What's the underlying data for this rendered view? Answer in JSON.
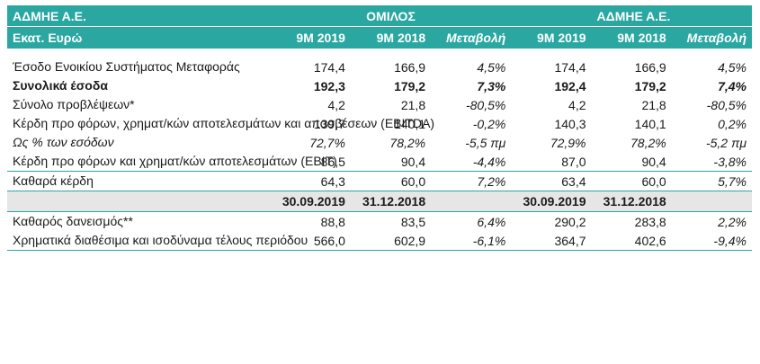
{
  "header": {
    "company": "ΑΔΜΗΕ Α.Ε.",
    "group": "ΟΜΙΛΟΣ",
    "company_right": "ΑΔΜΗΕ Α.Ε.",
    "unit": "Εκατ. Ευρώ",
    "cols": [
      "9M 2019",
      "9M 2018",
      "Μεταβολή",
      "9M 2019",
      "9M 2018",
      "Μεταβολή"
    ]
  },
  "rows": [
    {
      "label": "Έσοδο Ενοικίου Συστήματος Μεταφοράς",
      "v": [
        "174,4",
        "166,9",
        "4,5%",
        "174,4",
        "166,9",
        "4,5%"
      ]
    },
    {
      "label": "Συνολικά έσοδα",
      "v": [
        "192,3",
        "179,2",
        "7,3%",
        "192,4",
        "179,2",
        "7,4%"
      ]
    },
    {
      "label": "Σύνολο προβλέψεων*",
      "v": [
        "4,2",
        "21,8",
        "-80,5%",
        "4,2",
        "21,8",
        "-80,5%"
      ]
    },
    {
      "label": "Κέρδη προ φόρων, χρηματ/κών αποτελεσμάτων και αποσβέσεων (EBITDA)",
      "v": [
        "139,7",
        "140,1",
        "-0,2%",
        "140,3",
        "140,1",
        "0,2%"
      ]
    },
    {
      "label": "Ως % των εσόδων",
      "v": [
        "72,7%",
        "78,2%",
        "-5,5 πμ",
        "72,9%",
        "78,2%",
        "-5,2 πμ"
      ]
    },
    {
      "label": "Κέρδη προ φόρων και χρηματ/κών αποτελεσμάτων (EBIT)",
      "v": [
        "86,5",
        "90,4",
        "-4,4%",
        "87,0",
        "90,4",
        "-3,8%"
      ]
    },
    {
      "label": "Καθαρά κέρδη",
      "v": [
        "64,3",
        "60,0",
        "7,2%",
        "63,4",
        "60,0",
        "5,7%"
      ]
    }
  ],
  "dates": [
    "30.09.2019",
    "31.12.2018",
    "30.09.2019",
    "31.12.2018"
  ],
  "rows2": [
    {
      "label": "Καθαρός δανεισμός**",
      "v": [
        "88,8",
        "83,5",
        "6,4%",
        "290,2",
        "283,8",
        "2,2%"
      ]
    },
    {
      "label": "Χρηματικά διαθέσιμα και ισοδύναμα τέλους περιόδου",
      "v": [
        "566,0",
        "602,9",
        "-6,1%",
        "364,7",
        "402,6",
        "-9,4%"
      ]
    }
  ]
}
